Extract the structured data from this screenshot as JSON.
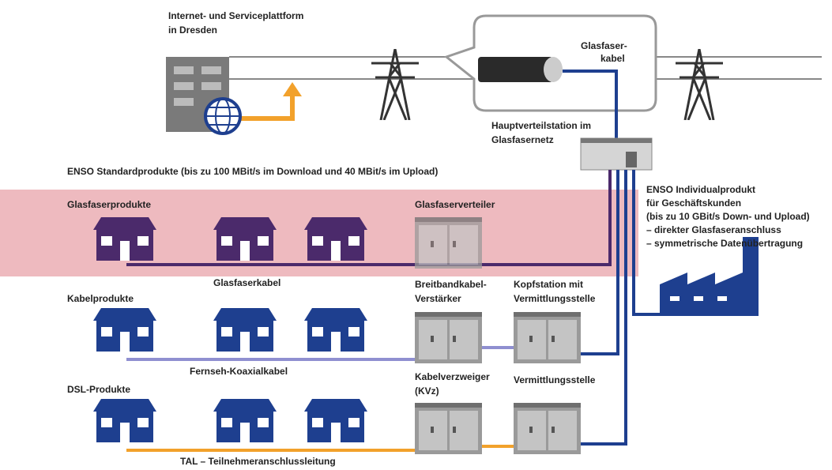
{
  "top": {
    "platform": [
      "Internet- und Serviceplattform",
      "in Dresden"
    ],
    "cable": [
      "Glasfaser-",
      "kabel"
    ],
    "station": [
      "Hauptverteilstation im",
      "Glasfasernetz"
    ]
  },
  "standard": {
    "heading": "ENSO Standardprodukte (bis zu 100 MBit/s im Download und 40 MBit/s im Upload)",
    "rows": [
      {
        "title": "Glasfaserprodukte",
        "cable": "Glasfaserkabel",
        "units": [
          [
            "Glasfaserverteiler"
          ]
        ]
      },
      {
        "title": "Kabelprodukte",
        "cable": "Fernseh-Koaxialkabel",
        "units": [
          [
            "Breitbandkabel-",
            "Verstärker"
          ],
          [
            "Kopfstation mit",
            "Vermittlungsstelle"
          ]
        ]
      },
      {
        "title": "DSL-Produkte",
        "cable": "TAL – Teilnehmeranschlussleitung",
        "units": [
          [
            "Kabelverzweiger",
            "(KVz)"
          ],
          [
            "Vermittlungsstelle"
          ]
        ]
      }
    ]
  },
  "individual": [
    "ENSO Individualprodukt",
    "für Geschäftskunden",
    "(bis zu 10 GBit/s Down- und Upload)",
    "– direkter Glasfaseranschluss",
    "– symmetrische Datenübertragung"
  ]
}
